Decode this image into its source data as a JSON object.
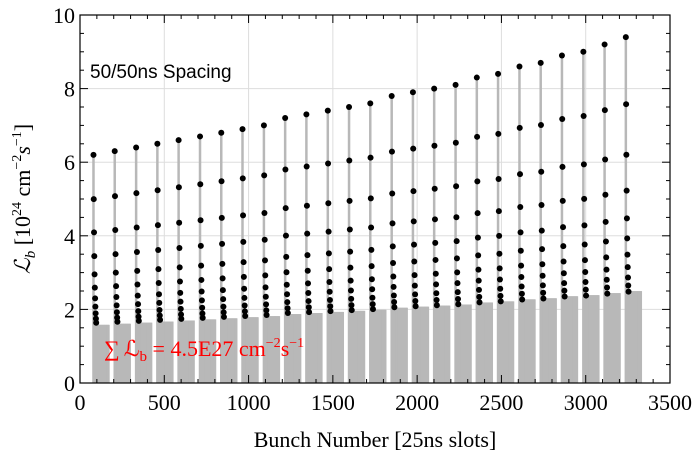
{
  "chart_data": {
    "type": "bar",
    "title": "50/50ns Spacing",
    "xlabel": "Bunch Number [25ns slots]",
    "ylabel_main": "ℒ",
    "ylabel_sub": "b",
    "ylabel_unit_pre": " [10",
    "ylabel_exp1": "24",
    "ylabel_unit_mid": " cm",
    "ylabel_exp2": "−2",
    "ylabel_unit_s": "s",
    "ylabel_exp3": "−1",
    "ylabel_unit_post": "]",
    "annotation": {
      "sum_symbol": "∑",
      "lum_symbol": "ℒ",
      "lum_sub": "b",
      "text_eq": " = 4.5E27 cm",
      "exp1": "−2",
      "s": "s",
      "exp2": "−1"
    },
    "xlim": [
      0,
      3500
    ],
    "ylim": [
      0,
      10
    ],
    "x_ticks": [
      "0",
      "500",
      "1000",
      "1500",
      "2000",
      "2500",
      "3000",
      "3500"
    ],
    "y_ticks": [
      "0",
      "2",
      "4",
      "6",
      "8",
      "10"
    ],
    "grid": true,
    "colors": {
      "bars": "#b8b8b8",
      "stems": "#b8b8b8",
      "points": "#000000",
      "annotation": "#ff0000",
      "grid": "#dddddd"
    },
    "train_start_x": [
      80,
      206,
      333,
      459,
      585,
      712,
      838,
      964,
      1091,
      1217,
      1343,
      1470,
      1596,
      1722,
      1849,
      1975,
      2101,
      2228,
      2354,
      2480,
      2607,
      2733,
      2859,
      2986,
      3112,
      3238
    ],
    "train_peak_luminosity": [
      6.2,
      6.3,
      6.4,
      6.5,
      6.6,
      6.7,
      6.8,
      6.9,
      7.0,
      7.2,
      7.3,
      7.4,
      7.5,
      7.6,
      7.8,
      7.9,
      8.0,
      8.1,
      8.3,
      8.4,
      8.6,
      8.7,
      8.9,
      9.0,
      9.2,
      9.4
    ],
    "train_level_ratios": [
      1.0,
      0.806,
      0.66,
      0.556,
      0.476,
      0.418,
      0.371,
      0.335,
      0.305,
      0.282,
      0.264
    ],
    "bunch_x_step_per_level": 0,
    "bar_slot_spacing": 4,
    "bars_per_train": 24,
    "bar_height_ratio": 0.255
  }
}
